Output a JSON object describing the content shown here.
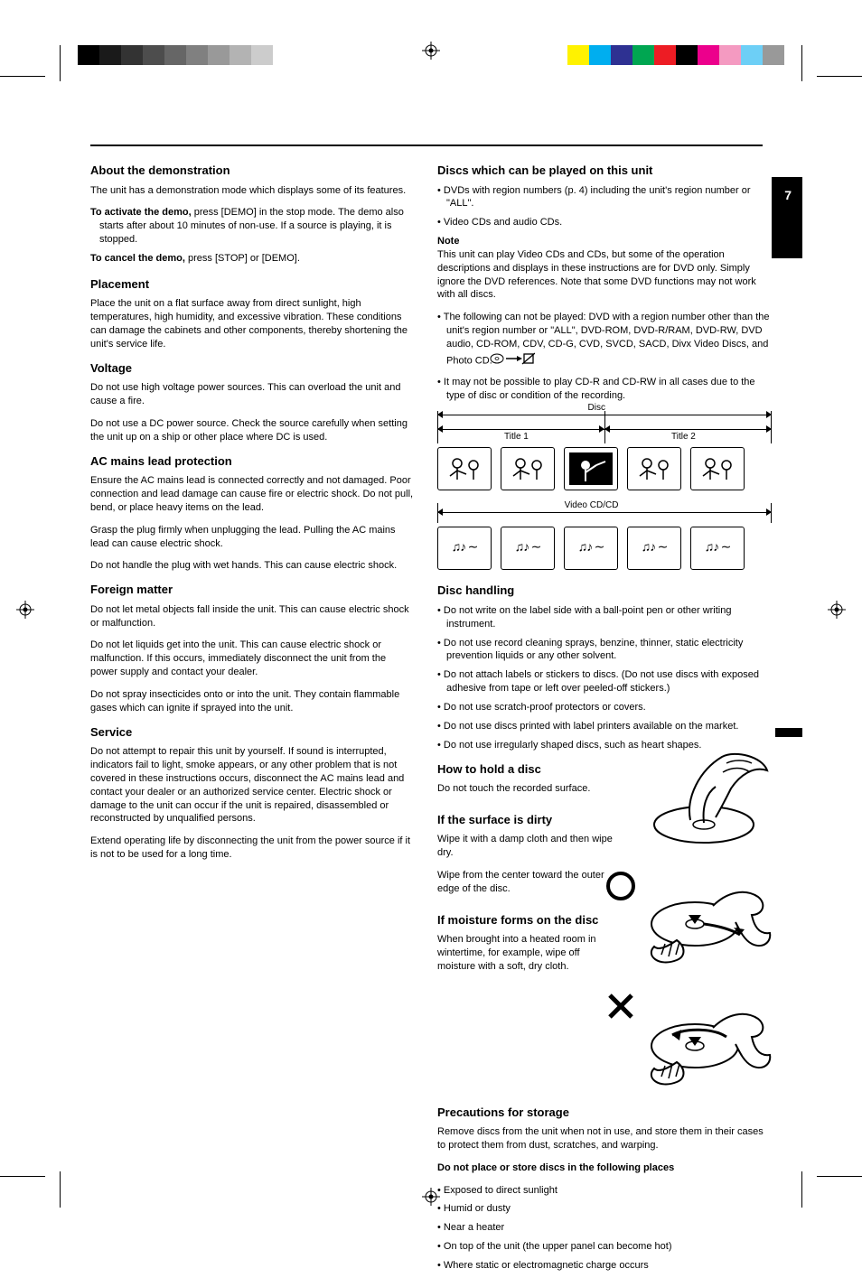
{
  "page_number": "7",
  "graySwatches": [
    "#000000",
    "#1a1a1a",
    "#333333",
    "#4d4d4d",
    "#666666",
    "#808080",
    "#999999",
    "#b3b3b3",
    "#cccccc",
    "#ffffff"
  ],
  "colorSwatches": [
    "#fff200",
    "#00aeef",
    "#2e3192",
    "#00a651",
    "#ed1c24",
    "#000000",
    "#ec008c",
    "#f49ac1",
    "#6dcff6",
    "#999999"
  ],
  "left": {
    "s1_head": "About the demonstration",
    "s1_p1": "The unit has a demonstration mode which displays some of its features.",
    "s1_b1_label": "To activate the demo,",
    "s1_b1_body": " press [DEMO] in the stop mode. The demo also starts after about 10 minutes of non-use. If a source is playing, it is stopped.",
    "s1_b2_label": "To cancel the demo,",
    "s1_b2_body": " press [STOP] or [DEMO].",
    "s2_head": "Placement",
    "s2_p1": "Place the unit on a flat surface away from direct sunlight, high temperatures, high humidity, and excessive vibration. These conditions can damage the cabinets and other components, thereby shortening the unit's service life.",
    "s3_head": "Voltage",
    "s3_p1": "Do not use high voltage power sources. This can overload the unit and cause a fire.",
    "s3_p2": "Do not use a DC power source. Check the source carefully when setting the unit up on a ship or other place where DC is used.",
    "s4_head": "AC mains lead protection",
    "s4_p1": "Ensure the AC mains lead is connected correctly and not damaged. Poor connection and lead damage can cause fire or electric shock. Do not pull, bend, or place heavy items on the lead.",
    "s4_p2": "Grasp the plug firmly when unplugging the lead. Pulling the AC mains lead can cause electric shock.",
    "s4_p3": "Do not handle the plug with wet hands. This can cause electric shock.",
    "s5_head": "Foreign matter",
    "s5_p1": "Do not let metal objects fall inside the unit. This can cause electric shock or malfunction.",
    "s5_p2": "Do not let liquids get into the unit. This can cause electric shock or malfunction. If this occurs, immediately disconnect the unit from the power supply and contact your dealer.",
    "s5_p3": "Do not spray insecticides onto or into the unit. They contain flammable gases which can ignite if sprayed into the unit.",
    "s6_head": "Service",
    "s6_p1": "Do not attempt to repair this unit by yourself. If sound is interrupted, indicators fail to light, smoke appears, or any other problem that is not covered in these instructions occurs, disconnect the AC mains lead and contact your dealer or an authorized service center. Electric shock or damage to the unit can occur if the unit is repaired, disassembled or reconstructed by unqualified persons.",
    "s6_p2": "Extend operating life by disconnecting the unit from the power source if it is not to be used for a long time."
  },
  "right": {
    "s7_head": "Discs which can be played on this unit",
    "s7_b1": "DVDs with region numbers (p. 4) including the unit's region number or \"ALL\".",
    "s7_b2": "Video CDs and audio CDs.",
    "s7_note_label": "Note",
    "s7_note_body": "This unit can play Video CDs and CDs, but some of the operation descriptions and displays in these instructions are for DVD only. Simply ignore the DVD references. Note that some DVD functions may not work with all discs.",
    "s7_b3": "The following can not be played: DVD with a region number other than the unit's region number or \"ALL\", DVD-ROM, DVD-R/RAM, DVD-RW, DVD audio, CD-ROM, CDV, CD-G, CVD, SVCD, SACD, Divx Video Discs, and Photo CD.",
    "s7_b4": "It may not be possible to play CD-R and CD-RW in all cases due to the type of disc or condition of the recording.",
    "groupA": {
      "left_label": "Disc",
      "right_label": "Title 2",
      "mid_label": "Title 1",
      "thumbCount": 5
    },
    "groupB": {
      "full_label": "Video CD/CD",
      "thumbCount": 5
    },
    "s8_head": "Disc handling",
    "s8_b1": "Do not write on the label side with a ball-point pen or other writing instrument.",
    "s8_b2": "Do not use record cleaning sprays, benzine, thinner, static electricity prevention liquids or any other solvent.",
    "s8_b3": "Do not attach labels or stickers to discs. (Do not use discs with exposed adhesive from tape or left over peeled-off stickers.)",
    "s8_b4": "Do not use scratch-proof protectors or covers.",
    "s8_b5": "Do not use discs printed with label printers available on the market.",
    "s8_b6": "Do not use irregularly shaped discs, such as heart shapes.",
    "s9_head": "How to hold a disc",
    "s9_p1": "Do not touch the recorded surface.",
    "s10_head": "If the surface is dirty",
    "s10_p1": "Wipe it with a damp cloth and then wipe dry.",
    "s10_p2": "Wipe from the center toward the outer edge of the disc.",
    "s11_head": "If moisture forms on the disc",
    "s11_p1": "When brought into a heated room in wintertime, for example, wipe off moisture with a soft, dry cloth.",
    "s12_head": "Precautions for storage",
    "s12_p1": "Remove discs from the unit when not in use, and store them in their cases to protect them from dust, scratches, and warping.",
    "s12_lead": "Do not place or store discs in the following places",
    "s12_b1": "Exposed to direct sunlight",
    "s12_b2": "Humid or dusty",
    "s12_b3": "Near a heater",
    "s12_b4": "On top of the unit (the upper panel can become hot)",
    "s12_b5": "Where static or electromagnetic charge occurs"
  }
}
